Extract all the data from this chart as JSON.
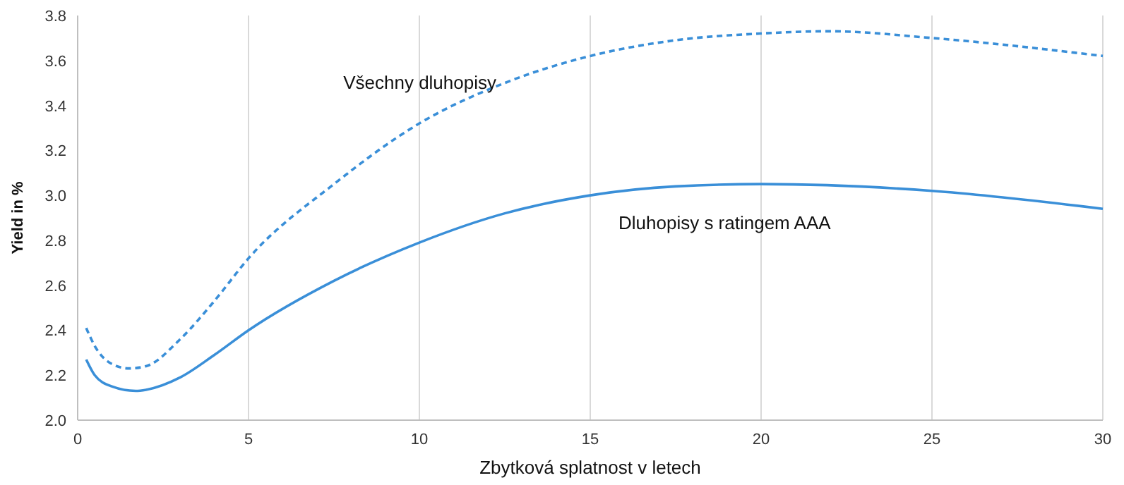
{
  "chart_data": {
    "type": "line",
    "xlabel": "Zbytková splatnost v letech",
    "ylabel": "Yield in %",
    "xlim": [
      0,
      30
    ],
    "xticks": [
      0,
      5,
      10,
      15,
      20,
      25,
      30
    ],
    "ylim": [
      2.0,
      3.8
    ],
    "yticks": [
      {
        "value": 2.0,
        "label": "2.0"
      },
      {
        "value": 2.2,
        "label": "2.2"
      },
      {
        "value": 2.4,
        "label": "2.4"
      },
      {
        "value": 2.6,
        "label": "2.6"
      },
      {
        "value": 2.8,
        "label": "2.8"
      },
      {
        "value": 3.0,
        "label": "3.0"
      },
      {
        "value": 3.2,
        "label": "3.2"
      },
      {
        "value": 3.4,
        "label": "3.4"
      },
      {
        "value": 3.6,
        "label": "3.6"
      },
      {
        "value": 3.8,
        "label": "3.8"
      }
    ],
    "grid": "x",
    "series": [
      {
        "name": "Všechny dluhopisy",
        "color": "#3a8fd8",
        "line_style": "dashed",
        "x": [
          0.25,
          0.5,
          1,
          1.5,
          2,
          3,
          4,
          5,
          7.5,
          10,
          12.5,
          15,
          17.5,
          20,
          22,
          25,
          30
        ],
        "values": [
          2.41,
          2.33,
          2.25,
          2.23,
          2.24,
          2.36,
          2.53,
          2.72,
          3.05,
          3.32,
          3.5,
          3.62,
          3.69,
          3.72,
          3.73,
          3.7,
          3.62
        ]
      },
      {
        "name": "Dluhopisy s ratingem AAA",
        "color": "#3a8fd8",
        "line_style": "solid",
        "x": [
          0.25,
          0.5,
          1,
          1.7,
          2,
          3,
          4,
          5,
          7.5,
          10,
          12.5,
          15,
          17.5,
          20,
          25,
          30
        ],
        "values": [
          2.27,
          2.2,
          2.15,
          2.13,
          2.135,
          2.19,
          2.29,
          2.4,
          2.62,
          2.79,
          2.92,
          3.0,
          3.04,
          3.05,
          3.02,
          2.94
        ]
      }
    ]
  }
}
